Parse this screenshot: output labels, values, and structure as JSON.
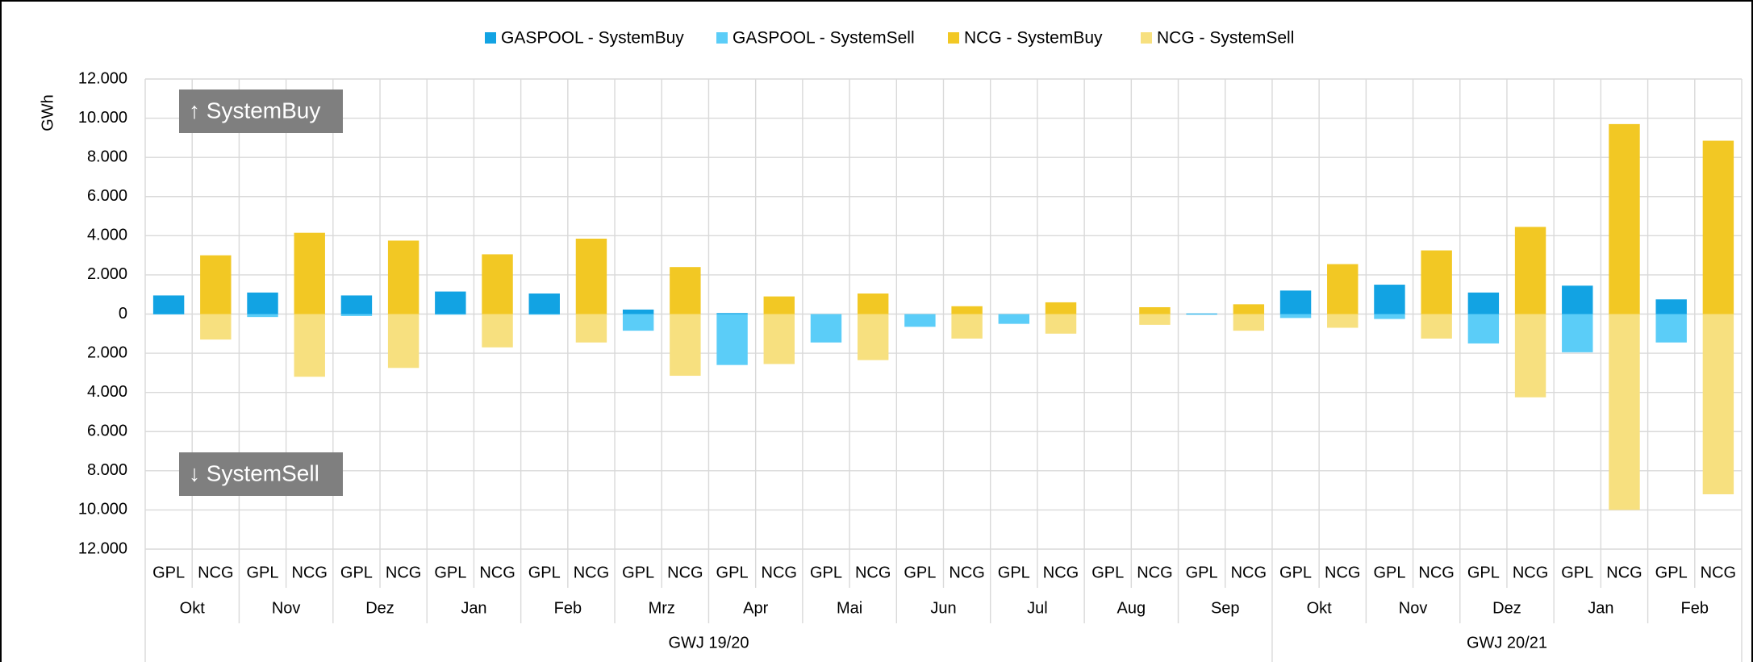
{
  "chart_data": {
    "type": "bar",
    "y_label": "GWh",
    "annotations": [
      "↑ SystemBuy",
      "↓ SystemSell"
    ],
    "subcategories": [
      "GPL",
      "NCG"
    ],
    "periods": [
      {
        "label": "GWJ 19/20",
        "months": [
          "Okt",
          "Nov",
          "Dez",
          "Jan",
          "Feb",
          "Mrz",
          "Apr",
          "Mai",
          "Jun",
          "Jul",
          "Aug",
          "Sep"
        ]
      },
      {
        "label": "GWJ 20/21",
        "months": [
          "Okt",
          "Nov",
          "Dez",
          "Jan",
          "Feb"
        ]
      }
    ],
    "series": [
      {
        "name": "GASPOOL - SystemBuy",
        "color": "#12a3e3",
        "values": [
          950,
          1100,
          950,
          1150,
          1050,
          230,
          50,
          0,
          0,
          0,
          0,
          30,
          1200,
          1500,
          1100,
          1450,
          750
        ]
      },
      {
        "name": "GASPOOL - SystemSell",
        "color": "#5bcdf8",
        "values": [
          -20,
          -150,
          -100,
          -30,
          -30,
          -850,
          -2600,
          -1450,
          -650,
          -500,
          0,
          -30,
          -200,
          -250,
          -1500,
          -1950,
          -1450
        ]
      },
      {
        "name": "NCG - SystemBuy",
        "color": "#f2c824",
        "values": [
          3000,
          4150,
          3750,
          3050,
          3850,
          2400,
          900,
          1050,
          400,
          600,
          350,
          500,
          2550,
          3250,
          4450,
          9700,
          8850
        ]
      },
      {
        "name": "NCG - SystemSell",
        "color": "#f7e07f",
        "values": [
          -1300,
          -3200,
          -2750,
          -1700,
          -1450,
          -3150,
          -2550,
          -2350,
          -1250,
          -1000,
          -550,
          -850,
          -700,
          -1250,
          -4250,
          -10000,
          -9200
        ]
      }
    ],
    "ylim": [
      -12000,
      12000
    ],
    "yticks": [
      {
        "value": -12000,
        "label": "12.000"
      },
      {
        "value": -10000,
        "label": "10.000"
      },
      {
        "value": -8000,
        "label": "8.000"
      },
      {
        "value": -6000,
        "label": "6.000"
      },
      {
        "value": -4000,
        "label": "4.000"
      },
      {
        "value": -2000,
        "label": "2.000"
      },
      0,
      {
        "value": 2000,
        "label": "2.000"
      },
      {
        "value": 4000,
        "label": "4.000"
      },
      {
        "value": 6000,
        "label": "6.000"
      },
      {
        "value": 8000,
        "label": "8.000"
      },
      {
        "value": 10000,
        "label": "10.000"
      },
      {
        "value": 12000,
        "label": "12.000"
      }
    ],
    "grid": true,
    "legend": "top"
  }
}
